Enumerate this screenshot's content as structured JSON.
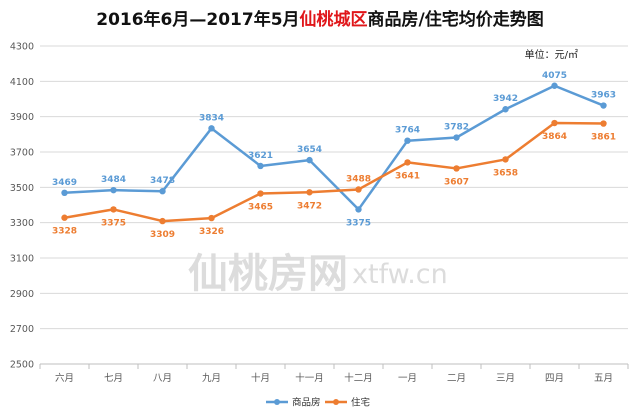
{
  "title": {
    "prefix": "2016年6月—2017年5月",
    "highlight": "仙桃城区",
    "suffix": "商品房/住宅均价走势图"
  },
  "unit_label": "单位：元/㎡",
  "watermark": {
    "cn": "仙桃房网",
    "en": "xtfw.cn"
  },
  "colors": {
    "series_blue": "#5b9bd5",
    "series_orange": "#ed7d31",
    "title_highlight": "#e0161a",
    "grid": "#d9d9d9"
  },
  "chart_data": {
    "type": "line",
    "categories": [
      "六月",
      "七月",
      "八月",
      "九月",
      "十月",
      "十一月",
      "十二月",
      "一月",
      "二月",
      "三月",
      "四月",
      "五月"
    ],
    "series": [
      {
        "name": "商品房",
        "values": [
          3469,
          3484,
          3478,
          3834,
          3621,
          3654,
          3375,
          3764,
          3782,
          3942,
          4075,
          3963
        ]
      },
      {
        "name": "住宅",
        "values": [
          3328,
          3375,
          3309,
          3326,
          3465,
          3472,
          3488,
          3641,
          3607,
          3658,
          3864,
          3861
        ]
      }
    ],
    "ylim": [
      2500,
      4300
    ],
    "yticks": [
      2500,
      2700,
      2900,
      3100,
      3300,
      3500,
      3700,
      3900,
      4100,
      4300
    ],
    "grid": true,
    "legend": "bottom"
  }
}
